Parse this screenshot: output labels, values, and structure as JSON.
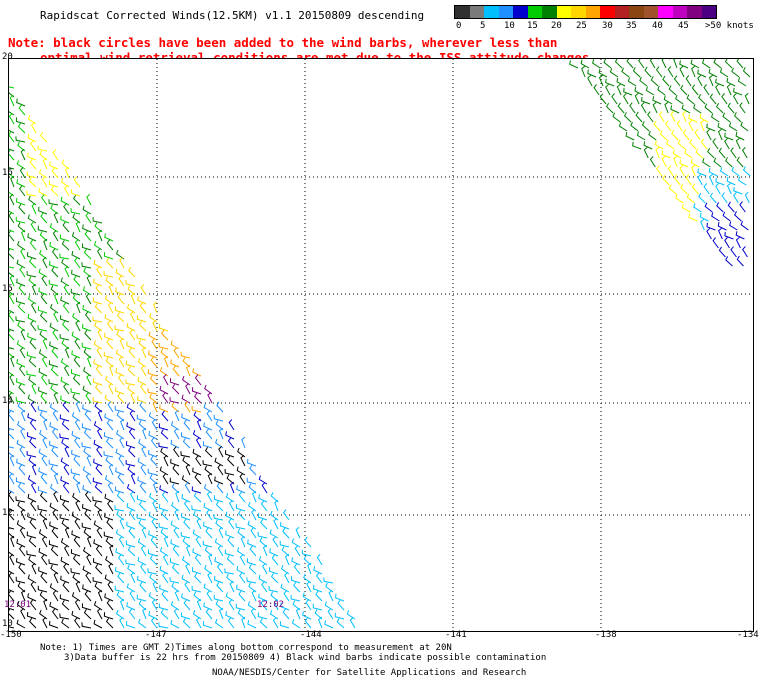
{
  "header": {
    "title": "Rapidscat Corrected Winds(12.5KM) v1.1 20150809 descending",
    "note_line1": "Note: black circles have been added to the wind barbs, wherever less than",
    "note_line2": "optimal wind retrieval conditions are met due to the ISS attitude changes."
  },
  "legend": {
    "colors": [
      "#303030",
      "#7a7a7a",
      "#00bfff",
      "#1e90ff",
      "#0000cd",
      "#00cc00",
      "#008000",
      "#ffff00",
      "#ffd700",
      "#ffa500",
      "#ff0000",
      "#b22222",
      "#8b4513",
      "#a0522d",
      "#ff00ff",
      "#c000c0",
      "#800080",
      "#4b0082"
    ],
    "labels": [
      "0",
      "5",
      "10",
      "15",
      "20",
      "25",
      "30",
      "35",
      "40",
      "45",
      ">50 knots"
    ]
  },
  "axes": {
    "y_labels": [
      "20",
      "16",
      "15",
      "14",
      "12",
      "10"
    ],
    "x_labels": [
      "-150",
      "-147",
      "-144",
      "-141",
      "-138",
      "-134"
    ]
  },
  "times": [
    "12:01",
    "12:02"
  ],
  "footer": {
    "line1": "Note: 1) Times are GMT 2)Times along bottom correspond to measurement at 20N",
    "line2": "3)Data buffer is 22 hrs from 20150809 4) Black wind barbs indicate possible contamination",
    "credit": "NOAA/NESDIS/Center for Satellite Applications and Research"
  }
}
